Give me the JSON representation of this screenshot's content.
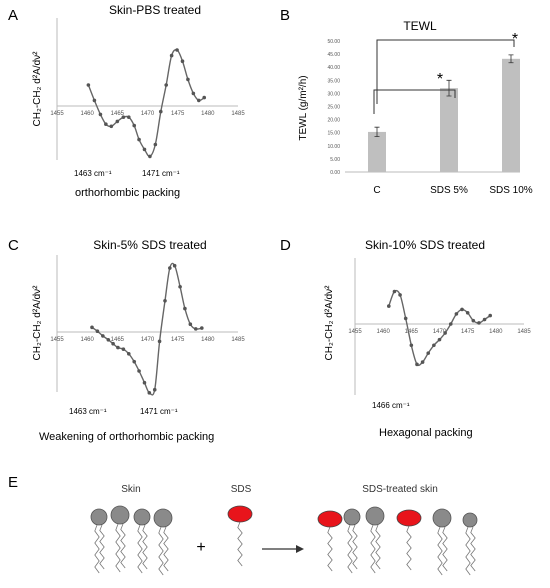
{
  "panels": {
    "A": "A",
    "B": "B",
    "C": "C",
    "D": "D",
    "E": "E"
  },
  "spectra_ylabel_A": "CH₂-CH₂ d²A/dν²",
  "spectra_ylabel_C": "CH₂-CH₂ d²A/dν²",
  "spectra_ylabel_D": "CH₂-CH₂ d²A/dν²",
  "annotations": {
    "A_peak1": "1463 cm⁻¹",
    "A_peak2": "1471 cm⁻¹",
    "A_caption": "orthorhombic packing",
    "C_peak1": "1463 cm⁻¹",
    "C_peak2": "1471 cm⁻¹",
    "C_caption": "Weakening of orthorhombic packing",
    "D_peak1": "1466 cm⁻¹",
    "D_caption": "Hexagonal  packing"
  },
  "panel_E": {
    "skin_label": "Skin",
    "sds_label": "SDS",
    "treated_label": "SDS-treated skin",
    "plus": "+",
    "arrow": "→",
    "colors": {
      "lipid": "#8a8a8a",
      "sds": "#e8141b"
    }
  },
  "chart_data": [
    {
      "type": "line",
      "title": "Skin-PBS treated",
      "xlabel": "",
      "ylabel": "CH₂-CH₂ d²A/dν²",
      "xlim": [
        1455,
        1485
      ],
      "xticks": [
        1455,
        1460,
        1465,
        1470,
        1475,
        1480,
        1485
      ],
      "series": [
        {
          "x": [
            1460.2,
            1461.2,
            1462.2,
            1463.1,
            1464.0,
            1465.0,
            1466.0,
            1466.9,
            1467.8,
            1468.6,
            1469.5,
            1470.4,
            1471.3,
            1472.2,
            1473.1,
            1474.0,
            1474.9,
            1475.8,
            1476.7,
            1477.6,
            1478.5,
            1479.4
          ],
          "y": [
            0.3,
            0.08,
            -0.12,
            -0.26,
            -0.29,
            -0.22,
            -0.16,
            -0.16,
            -0.28,
            -0.48,
            -0.62,
            -0.72,
            -0.55,
            -0.08,
            0.3,
            0.72,
            0.8,
            0.64,
            0.38,
            0.18,
            0.08,
            0.12
          ]
        }
      ],
      "grid": false,
      "legend": "none"
    },
    {
      "type": "bar",
      "title": "TEWL",
      "xlabel": "",
      "ylabel": "TEWL (g/m²/h)",
      "categories": [
        "C",
        "SDS 5%",
        "SDS 10%"
      ],
      "values": [
        15.3,
        32.0,
        43.2
      ],
      "errors": [
        1.8,
        3.0,
        1.5
      ],
      "ylim": [
        0,
        50
      ],
      "yticks": [
        "0.00",
        "5.00",
        "10.00",
        "15.00",
        "20.00",
        "25.00",
        "30.00",
        "35.00",
        "40.00",
        "45.00",
        "50.00"
      ],
      "significance": [
        "*",
        "*"
      ],
      "color": "#bfbfbf",
      "grid": false,
      "legend": "none"
    },
    {
      "type": "line",
      "title": "Skin-5% SDS  treated",
      "xlabel": "",
      "ylabel": "CH₂-CH₂ d²A/dν²",
      "xlim": [
        1455,
        1485
      ],
      "xticks": [
        1455,
        1460,
        1465,
        1470,
        1475,
        1480,
        1485
      ],
      "series": [
        {
          "x": [
            1460.8,
            1461.7,
            1462.6,
            1463.5,
            1464.3,
            1465.1,
            1466.0,
            1466.9,
            1467.8,
            1468.6,
            1469.5,
            1470.3,
            1471.2,
            1472.0,
            1472.9,
            1473.7,
            1474.5,
            1475.4,
            1476.2,
            1477.1,
            1478.0,
            1479.0
          ],
          "y": [
            0.06,
            0.01,
            -0.05,
            -0.1,
            -0.15,
            -0.2,
            -0.22,
            -0.28,
            -0.38,
            -0.5,
            -0.65,
            -0.78,
            -0.74,
            -0.12,
            0.4,
            0.82,
            0.85,
            0.58,
            0.3,
            0.1,
            0.04,
            0.05
          ]
        }
      ],
      "grid": false,
      "legend": "none"
    },
    {
      "type": "line",
      "title": "Skin-10% SDS  treated",
      "xlabel": "",
      "ylabel": "CH₂-CH₂ d²A/dν²",
      "xlim": [
        1455,
        1485
      ],
      "xticks": [
        1455,
        1460,
        1465,
        1470,
        1475,
        1480,
        1485
      ],
      "series": [
        {
          "x": [
            1461.0,
            1462.0,
            1463.0,
            1464.0,
            1465.0,
            1466.0,
            1467.0,
            1468.0,
            1469.0,
            1470.0,
            1471.0,
            1472.0,
            1473.0,
            1474.0,
            1475.0,
            1476.0,
            1477.0,
            1478.0,
            1479.0
          ],
          "y": [
            0.32,
            0.58,
            0.52,
            0.1,
            -0.38,
            -0.72,
            -0.68,
            -0.52,
            -0.38,
            -0.28,
            -0.16,
            0.0,
            0.18,
            0.26,
            0.2,
            0.06,
            0.02,
            0.08,
            0.15
          ]
        }
      ],
      "grid": false,
      "legend": "none"
    }
  ]
}
